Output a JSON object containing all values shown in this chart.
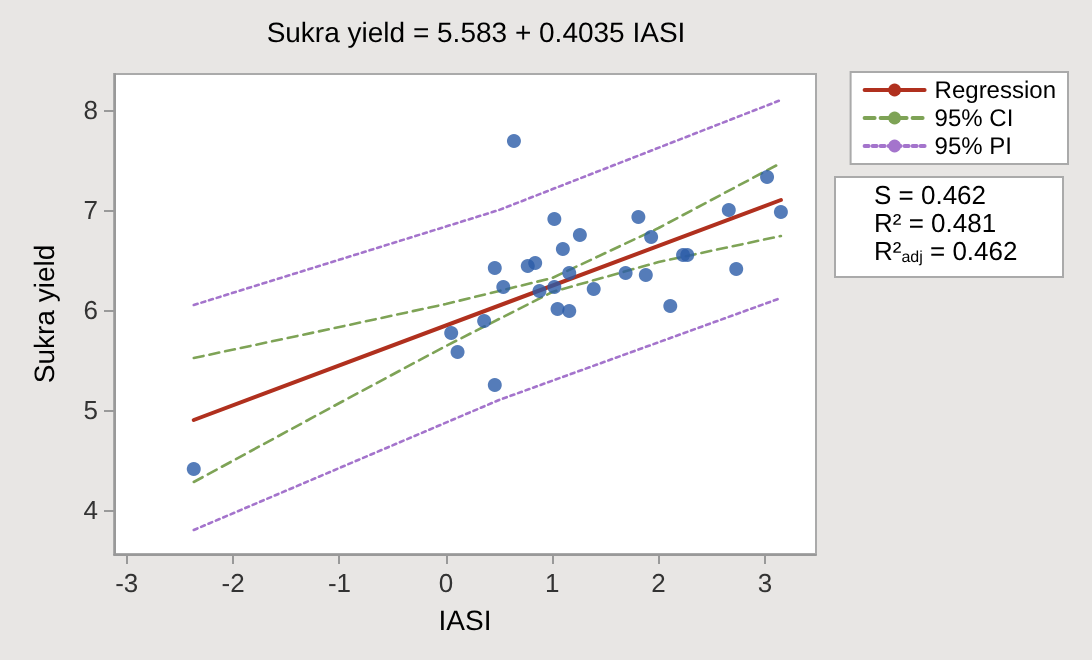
{
  "chart_data": {
    "type": "scatter",
    "title": "Sukra yield = 5.583 + 0.4035 IASI",
    "xlabel": "IASI",
    "ylabel": "Sukra yield",
    "xlim": [
      -3.12,
      3.48
    ],
    "ylim": [
      3.56,
      8.36
    ],
    "xticks": [
      -3,
      -2,
      -1,
      0,
      1,
      2,
      3
    ],
    "yticks": [
      4,
      5,
      6,
      7,
      8
    ],
    "grid": false,
    "legend": "top right",
    "marker": "circle",
    "series": [
      {
        "color": "#2b5ba8",
        "x": [
          -2.37,
          0.05,
          0.11,
          0.36,
          0.46,
          0.46,
          0.64,
          0.54,
          0.77,
          0.84,
          0.88,
          1.02,
          1.1,
          1.16,
          1.02,
          1.05,
          1.16,
          1.26,
          1.39,
          1.69,
          1.81,
          1.93,
          1.88,
          2.11,
          2.23,
          2.27,
          2.66,
          2.73,
          3.02,
          3.15
        ],
        "values": [
          4.41,
          5.77,
          5.58,
          5.89,
          6.42,
          5.25,
          7.69,
          6.23,
          6.44,
          6.47,
          6.19,
          6.91,
          6.61,
          6.37,
          6.23,
          6.01,
          5.99,
          6.75,
          6.21,
          6.37,
          6.93,
          6.73,
          6.35,
          6.04,
          6.55,
          6.55,
          7.0,
          6.41,
          7.33,
          6.98
        ]
      },
      {
        "type": "line",
        "name": "Regression",
        "color": "#b0301e",
        "line_style": "solid",
        "marker": "none",
        "x": [
          -2.37,
          3.15
        ],
        "values": [
          4.9,
          7.1
        ]
      },
      {
        "type": "line",
        "name": "95% CI",
        "color": "#7ea356",
        "line_style": "dashed",
        "marker": "none",
        "x": [
          -2.37,
          -1,
          0,
          1,
          2,
          3.15
        ],
        "values": [
          5.52,
          5.83,
          6.06,
          6.32,
          6.82,
          7.47
        ]
      },
      {
        "type": "line",
        "color": "#7ea356",
        "line_style": "dashed",
        "marker": "none",
        "x": [
          -2.37,
          -1,
          0,
          1,
          2,
          3.15
        ],
        "values": [
          4.28,
          5.07,
          5.64,
          6.18,
          6.48,
          6.74
        ]
      },
      {
        "type": "line",
        "name": "95% PI",
        "color": "#a474cc",
        "line_style": "dotted",
        "marker": "none",
        "x": [
          -2.37,
          0.5,
          3.15
        ],
        "values": [
          6.05,
          7.0,
          8.1
        ]
      },
      {
        "type": "line",
        "color": "#a474cc",
        "line_style": "dotted",
        "marker": "none",
        "x": [
          -2.37,
          0.5,
          3.15
        ],
        "values": [
          3.8,
          5.1,
          6.12
        ]
      }
    ],
    "annotations": [
      "S = 0.462",
      "R² = 0.481",
      "R²$_{adj}$ = 0.462"
    ]
  }
}
